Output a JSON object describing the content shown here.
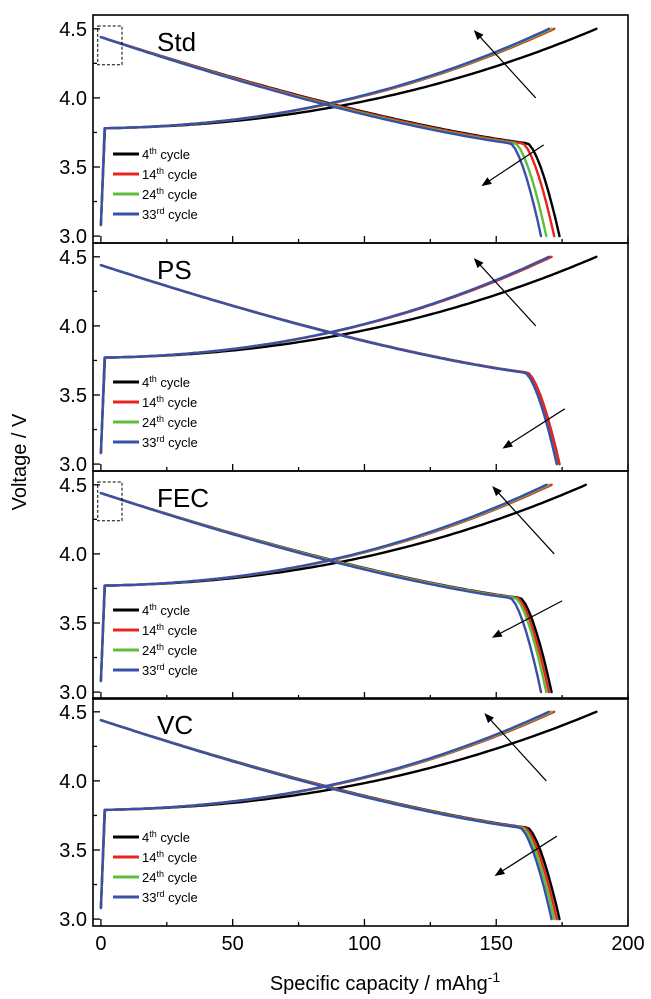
{
  "chart_data": {
    "type": "line",
    "xlabel": "Specific capacity / mAhg",
    "xlabel_sup": "-1",
    "ylabel": "Voltage / V",
    "xlim": [
      -3,
      200
    ],
    "ylim": [
      2.95,
      4.6
    ],
    "x_ticks": [
      "0",
      "50",
      "100",
      "150",
      "200"
    ],
    "y_ticks": [
      "3.0",
      "3.5",
      "4.0",
      "4.5"
    ],
    "colors": {
      "black": "#000000",
      "red": "#e8241c",
      "green": "#5cbf3a",
      "blue": "#3b4fa8"
    },
    "legend": [
      {
        "num": "4",
        "sup": "th",
        "rest": " cycle",
        "color": "#000000"
      },
      {
        "num": "14",
        "sup": "th",
        "rest": " cycle",
        "color": "#e8241c"
      },
      {
        "num": "24",
        "sup": "th",
        "rest": " cycle",
        "color": "#5cbf3a"
      },
      {
        "num": "33",
        "sup": "rd",
        "rest": " cycle",
        "color": "#3b4fa8"
      }
    ],
    "panels": [
      {
        "label": "Std",
        "inset_box": true,
        "charge_max": [
          188,
          172,
          171,
          170
        ],
        "discharge_max": [
          174,
          172,
          169,
          167
        ],
        "charge_plateau": 3.78,
        "discharge_knee": 3.65,
        "arrow_up": {
          "from": [
            165,
            4.0
          ],
          "to": [
            142,
            4.48
          ]
        },
        "arrow_down": {
          "from": [
            168,
            3.66
          ],
          "to": [
            145,
            3.37
          ]
        }
      },
      {
        "label": "PS",
        "inset_box": false,
        "charge_max": [
          188,
          171,
          170,
          170
        ],
        "discharge_max": [
          174,
          174,
          173,
          173
        ],
        "charge_plateau": 3.77,
        "discharge_knee": 3.64,
        "arrow_up": {
          "from": [
            165,
            4.0
          ],
          "to": [
            142,
            4.48
          ]
        },
        "arrow_down": {
          "from": [
            176,
            3.4
          ],
          "to": [
            153,
            3.12
          ]
        }
      },
      {
        "label": "FEC",
        "inset_box": true,
        "charge_max": [
          184,
          171,
          170,
          169
        ],
        "discharge_max": [
          171,
          170,
          169,
          167
        ],
        "charge_plateau": 3.77,
        "discharge_knee": 3.66,
        "arrow_up": {
          "from": [
            172,
            4.0
          ],
          "to": [
            149,
            4.48
          ]
        },
        "arrow_down": {
          "from": [
            175,
            3.66
          ],
          "to": [
            149,
            3.4
          ]
        }
      },
      {
        "label": "VC",
        "inset_box": false,
        "charge_max": [
          188,
          172,
          171,
          170
        ],
        "discharge_max": [
          174,
          173,
          172,
          171
        ],
        "charge_plateau": 3.79,
        "discharge_knee": 3.64,
        "arrow_up": {
          "from": [
            169,
            4.0
          ],
          "to": [
            146,
            4.48
          ]
        },
        "arrow_down": {
          "from": [
            173,
            3.6
          ],
          "to": [
            150,
            3.32
          ]
        }
      }
    ]
  }
}
